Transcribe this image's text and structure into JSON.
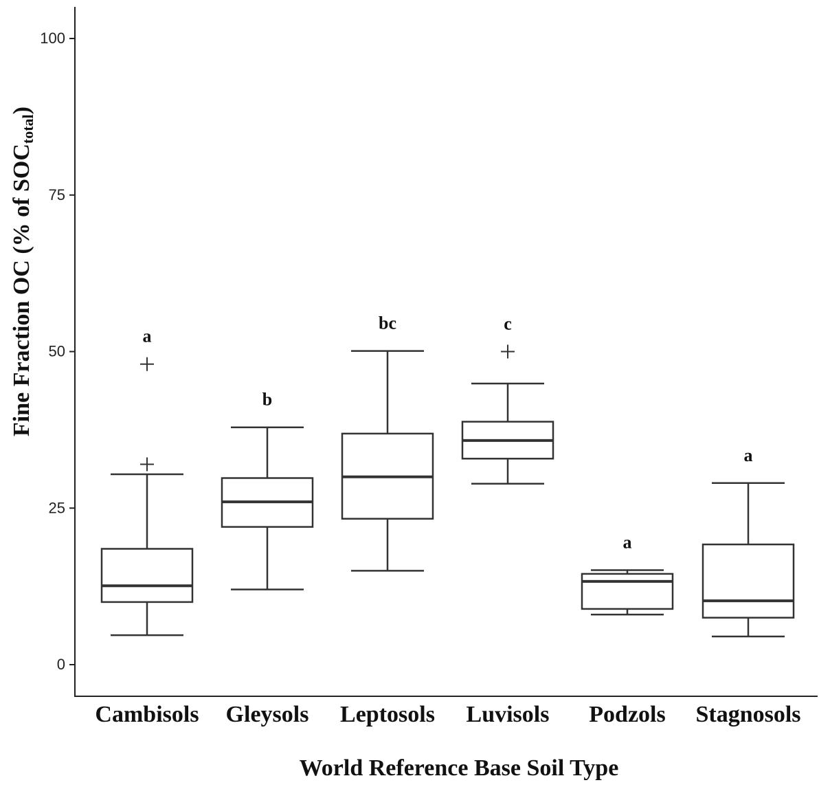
{
  "chart_data": {
    "type": "boxplot",
    "xlabel": "World Reference Base Soil Type",
    "ylabel": {
      "main": "Fine Fraction OC (% of SOC",
      "subscript": "total",
      "close": ")"
    },
    "ylim": [
      -5,
      105
    ],
    "yticks": [
      0,
      25,
      50,
      75,
      100
    ],
    "grid": false,
    "categories": [
      "Cambisols",
      "Gleysols",
      "Leptosols",
      "Luvisols",
      "Podzols",
      "Stagnosols"
    ],
    "boxes": [
      {
        "category": "Cambisols",
        "whisker_low": 4.7,
        "q1": 10.0,
        "median": 12.6,
        "q3": 18.5,
        "whisker_high": 30.4,
        "outliers": [
          32.0,
          48.0
        ],
        "letter": "a"
      },
      {
        "category": "Gleysols",
        "whisker_low": 12.0,
        "q1": 22.0,
        "median": 26.0,
        "q3": 29.8,
        "whisker_high": 37.9,
        "outliers": [],
        "letter": "b"
      },
      {
        "category": "Leptosols",
        "whisker_low": 15.0,
        "q1": 23.3,
        "median": 30.0,
        "q3": 36.9,
        "whisker_high": 50.1,
        "outliers": [],
        "letter": "bc"
      },
      {
        "category": "Luvisols",
        "whisker_low": 28.9,
        "q1": 32.9,
        "median": 35.8,
        "q3": 38.8,
        "whisker_high": 44.9,
        "outliers": [
          50.0
        ],
        "letter": "c"
      },
      {
        "category": "Podzols",
        "whisker_low": 8.0,
        "q1": 8.9,
        "median": 13.3,
        "q3": 14.5,
        "whisker_high": 15.1,
        "outliers": [],
        "letter": "a"
      },
      {
        "category": "Stagnosols",
        "whisker_low": 4.5,
        "q1": 7.5,
        "median": 10.2,
        "q3": 19.2,
        "whisker_high": 29.0,
        "outliers": [],
        "letter": "a"
      }
    ]
  }
}
